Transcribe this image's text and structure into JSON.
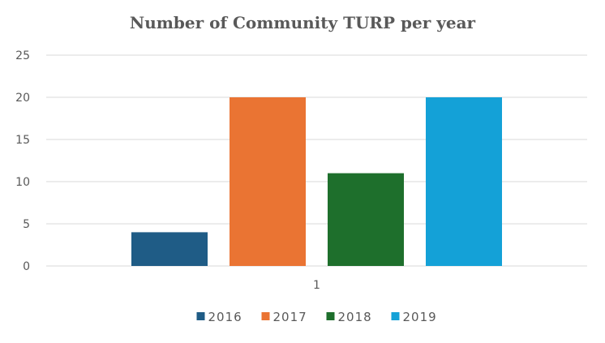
{
  "chart_data": {
    "type": "bar",
    "title": "Number of Community TURP per year",
    "categories": [
      "1"
    ],
    "series": [
      {
        "name": "2016",
        "values": [
          4
        ],
        "color": "#1f5c86"
      },
      {
        "name": "2017",
        "values": [
          20
        ],
        "color": "#ea7433"
      },
      {
        "name": "2018",
        "values": [
          11
        ],
        "color": "#1e6f2c"
      },
      {
        "name": "2019",
        "values": [
          20
        ],
        "color": "#14a1d7"
      }
    ],
    "ylim": [
      0,
      25
    ],
    "yticks": [
      "0",
      "5",
      "10",
      "15",
      "20",
      "25"
    ],
    "xlabel": "",
    "ylabel": "",
    "grid": true,
    "legend": "bottom"
  }
}
